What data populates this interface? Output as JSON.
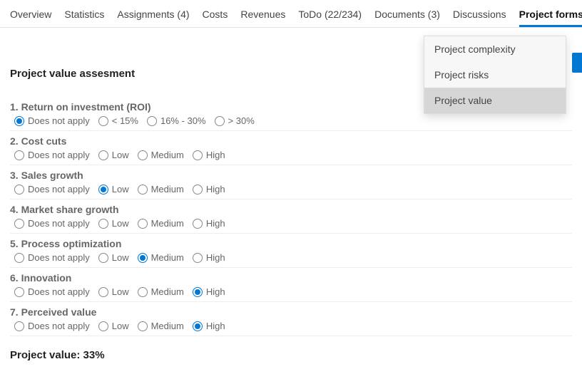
{
  "tabs": [
    {
      "label": "Overview",
      "active": false
    },
    {
      "label": "Statistics",
      "active": false
    },
    {
      "label": "Assignments (4)",
      "active": false
    },
    {
      "label": "Costs",
      "active": false
    },
    {
      "label": "Revenues",
      "active": false
    },
    {
      "label": "ToDo (22/234)",
      "active": false
    },
    {
      "label": "Documents (3)",
      "active": false
    },
    {
      "label": "Discussions",
      "active": false
    },
    {
      "label": "Project forms",
      "active": true
    }
  ],
  "dropdown": {
    "items": [
      {
        "label": "Project complexity",
        "selected": false
      },
      {
        "label": "Project risks",
        "selected": false
      },
      {
        "label": "Project value",
        "selected": true
      }
    ]
  },
  "section_title": "Project value assesment",
  "questions": [
    {
      "label": "1. Return on investment (ROI)",
      "options": [
        "Does not apply",
        "< 15%",
        "16% - 30%",
        "> 30%"
      ],
      "selected": 0
    },
    {
      "label": "2. Cost cuts",
      "options": [
        "Does not apply",
        "Low",
        "Medium",
        "High"
      ],
      "selected": -1
    },
    {
      "label": "3. Sales growth",
      "options": [
        "Does not apply",
        "Low",
        "Medium",
        "High"
      ],
      "selected": 1
    },
    {
      "label": "4. Market share growth",
      "options": [
        "Does not apply",
        "Low",
        "Medium",
        "High"
      ],
      "selected": -1
    },
    {
      "label": "5. Process optimization",
      "options": [
        "Does not apply",
        "Low",
        "Medium",
        "High"
      ],
      "selected": 2
    },
    {
      "label": "6. Innovation",
      "options": [
        "Does not apply",
        "Low",
        "Medium",
        "High"
      ],
      "selected": 3
    },
    {
      "label": "7. Perceived value",
      "options": [
        "Does not apply",
        "Low",
        "Medium",
        "High"
      ],
      "selected": 3
    }
  ],
  "result_label": "Project value: 33%",
  "colors": {
    "accent": "#0078d4",
    "text_muted": "#666",
    "border": "#e1e1e1"
  }
}
